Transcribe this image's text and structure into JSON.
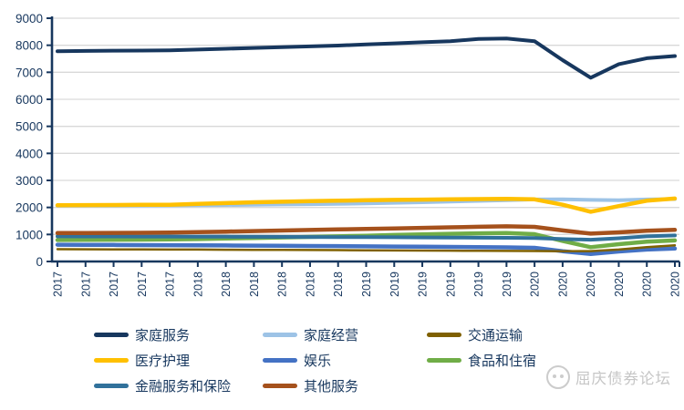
{
  "watermark": {
    "logo": "panda-logo",
    "text": "屈庆债券论坛"
  },
  "colors": {
    "axis": "#17375E",
    "grid": "#D9D9D9",
    "tick_text": "#17375E",
    "watermark_gray": "#C6C6C6"
  },
  "legend": {
    "position": "bottom",
    "items": [
      {
        "name": "household-service",
        "label": "家庭服务",
        "color": "#17375E",
        "col": 0,
        "row": 0
      },
      {
        "name": "household-operation",
        "label": "家庭经营",
        "color": "#9DC3E6",
        "col": 1,
        "row": 0
      },
      {
        "name": "transportation",
        "label": "交通运输",
        "color": "#7F6000",
        "col": 2,
        "row": 0
      },
      {
        "name": "medical-care",
        "label": "医疗护理",
        "color": "#FFC000",
        "col": 0,
        "row": 1
      },
      {
        "name": "entertainment",
        "label": "娱乐",
        "color": "#4472C4",
        "col": 1,
        "row": 1
      },
      {
        "name": "food-and-lodging",
        "label": "食品和住宿",
        "color": "#70AD47",
        "col": 2,
        "row": 1
      },
      {
        "name": "finance-insurance",
        "label": "金融服务和保险",
        "color": "#31719B",
        "col": 0,
        "row": 2
      },
      {
        "name": "other-services",
        "label": "其他服务",
        "color": "#A5511C",
        "col": 1,
        "row": 2
      }
    ]
  },
  "chart_data": {
    "type": "line",
    "title": "",
    "xlabel": "",
    "ylabel": "",
    "ylim": [
      0,
      9000
    ],
    "y_ticks": [
      0,
      1000,
      2000,
      3000,
      4000,
      5000,
      6000,
      7000,
      8000,
      9000
    ],
    "grid": true,
    "categories": [
      "2017",
      "2017",
      "2017",
      "2017",
      "2017",
      "2018",
      "2018",
      "2018",
      "2018",
      "2018",
      "2018",
      "2019",
      "2019",
      "2019",
      "2019",
      "2019",
      "2019",
      "2020",
      "2020",
      "2020",
      "2020",
      "2020",
      "2020"
    ],
    "series": [
      {
        "name": "家庭服务",
        "color": "#17375E",
        "width": 4,
        "values": [
          7780,
          7790,
          7800,
          7805,
          7815,
          7840,
          7870,
          7900,
          7930,
          7960,
          7990,
          8030,
          8070,
          8110,
          8150,
          8230,
          8250,
          8150,
          7450,
          6800,
          7300,
          7520,
          7600
        ]
      },
      {
        "name": "家庭经营",
        "color": "#9DC3E6",
        "width": 4,
        "values": [
          2060,
          2063,
          2066,
          2070,
          2073,
          2080,
          2090,
          2100,
          2110,
          2120,
          2130,
          2150,
          2170,
          2190,
          2215,
          2240,
          2270,
          2295,
          2300,
          2280,
          2270,
          2295,
          2310
        ]
      },
      {
        "name": "交通运输",
        "color": "#7F6000",
        "width": 2.5,
        "values": [
          455,
          452,
          449,
          446,
          443,
          440,
          436,
          432,
          428,
          424,
          420,
          414,
          409,
          404,
          400,
          396,
          392,
          388,
          380,
          385,
          440,
          530,
          600
        ]
      },
      {
        "name": "医疗护理",
        "color": "#FFC000",
        "width": 4.5,
        "values": [
          2080,
          2085,
          2090,
          2095,
          2100,
          2130,
          2160,
          2190,
          2210,
          2230,
          2250,
          2270,
          2280,
          2290,
          2300,
          2310,
          2320,
          2300,
          2100,
          1840,
          2050,
          2250,
          2330
        ]
      },
      {
        "name": "娱乐",
        "color": "#4472C4",
        "width": 4.5,
        "values": [
          620,
          616,
          612,
          608,
          604,
          598,
          592,
          586,
          580,
          574,
          568,
          560,
          552,
          545,
          538,
          530,
          522,
          505,
          380,
          280,
          370,
          440,
          480
        ]
      },
      {
        "name": "食品和住宿",
        "color": "#70AD47",
        "width": 4.5,
        "values": [
          795,
          800,
          805,
          810,
          815,
          830,
          850,
          870,
          890,
          910,
          930,
          955,
          980,
          1005,
          1025,
          1040,
          1050,
          1010,
          760,
          530,
          640,
          730,
          780
        ]
      },
      {
        "name": "金融服务和保险",
        "color": "#31719B",
        "width": 4,
        "values": [
          930,
          928,
          926,
          924,
          922,
          920,
          917,
          914,
          911,
          908,
          905,
          900,
          895,
          890,
          885,
          880,
          875,
          865,
          830,
          805,
          860,
          930,
          965
        ]
      },
      {
        "name": "其他服务",
        "color": "#A5511C",
        "width": 4.5,
        "values": [
          1050,
          1055,
          1060,
          1063,
          1068,
          1085,
          1105,
          1125,
          1145,
          1165,
          1185,
          1205,
          1225,
          1245,
          1265,
          1285,
          1300,
          1280,
          1150,
          1030,
          1080,
          1140,
          1170
        ]
      }
    ],
    "draw_order": [
      "家庭经营",
      "娱乐",
      "交通运输",
      "食品和住宿",
      "金融服务和保险",
      "其他服务",
      "医疗护理",
      "家庭服务"
    ]
  }
}
